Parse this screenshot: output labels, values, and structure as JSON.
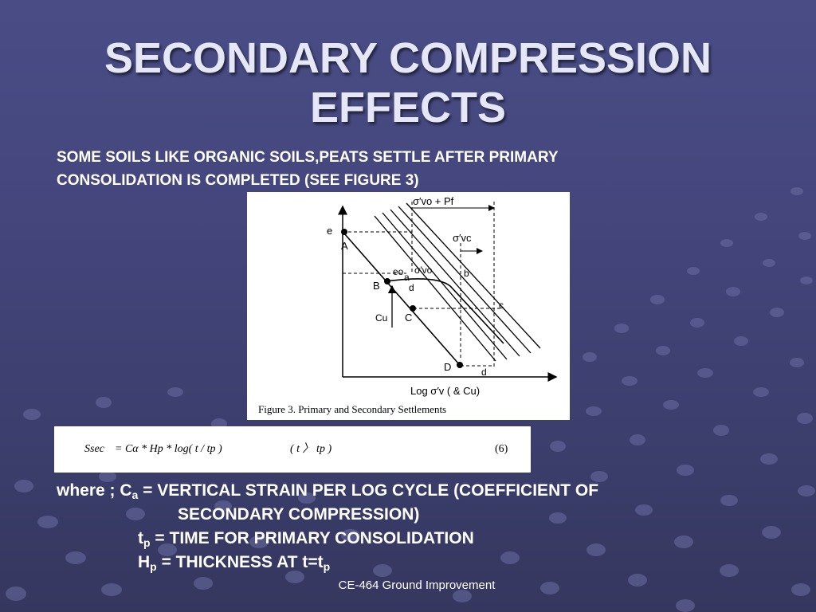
{
  "slide": {
    "title_line1": "SECONDARY COMPRESSION",
    "title_line2": "EFFECTS",
    "intro_line1": "SOME SOILS LIKE ORGANIC SOILS,PEATS SETTLE AFTER PRIMARY",
    "intro_line2": "CONSOLIDATION IS COMPLETED (SEE FIGURE 3)",
    "footer": "CE-464 Ground Improvement"
  },
  "figure": {
    "caption": "Figure 3. Primary and Secondary Settlements",
    "x_axis_label": "Log σ′v ( & Cu)",
    "y_axis_label": "e",
    "top_label": "σ′vo + Pf",
    "sigma_vc": "σ′vc",
    "sigma_vo": "σ′vo",
    "e0_label": "eo",
    "point_A": "A",
    "point_B": "B",
    "point_C": "C",
    "point_D": "D",
    "lower_a": "a",
    "lower_b": "b",
    "lower_c": "c",
    "lower_d1": "d",
    "lower_d2": "d",
    "cu_label": "Cu"
  },
  "equation": {
    "lhs": "Ssec",
    "formula": "= Cα * Hp * log( t / tp )",
    "condition": "( t 〉 tp )",
    "number": "(6)"
  },
  "notes": {
    "where_prefix": "where ; C",
    "where_sub": "a",
    "where_rest": " = VERTICAL STRAIN PER LOG CYCLE (COEFFICIENT OF",
    "where_cont": "SECONDARY COMPRESSION)",
    "tp_main": "t",
    "tp_sub": "p",
    "tp_rest": " = TIME FOR PRIMARY CONSOLIDATION",
    "hp_main": "H",
    "hp_sub": "p",
    "hp_rest": " = THICKNESS AT t=t",
    "hp_end_sub": "p"
  },
  "colors": {
    "background_top": "#4a4c86",
    "background_bottom": "#35375f",
    "title": "#e6e7f6",
    "text": "#ffffff"
  }
}
